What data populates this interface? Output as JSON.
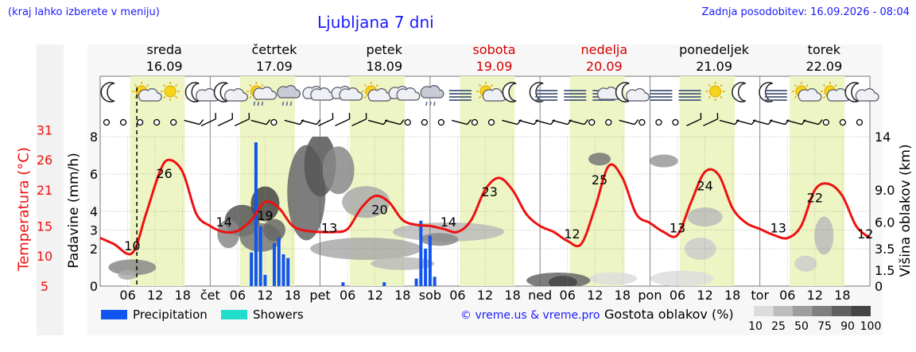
{
  "header": {
    "location_hint": "(kraj lahko izberete v meniju)",
    "title": "Ljubljana 7 dni",
    "updated": "Zadnja posodobitev: 16.09.2026 - 08:04"
  },
  "days": [
    {
      "name": "sreda",
      "date": "16.09",
      "weekend": false
    },
    {
      "name": "četrtek",
      "date": "17.09",
      "weekend": false
    },
    {
      "name": "petek",
      "date": "18.09",
      "weekend": false
    },
    {
      "name": "sobota",
      "date": "19.09",
      "weekend": true
    },
    {
      "name": "nedelja",
      "date": "20.09",
      "weekend": true
    },
    {
      "name": "ponedeljek",
      "date": "21.09",
      "weekend": false
    },
    {
      "name": "torek",
      "date": "22.09",
      "weekend": false
    }
  ],
  "day_abbrev": [
    "čet",
    "pet",
    "sob",
    "ned",
    "pon",
    "tor"
  ],
  "axis_labels": {
    "temp": "Temperatura (°C)",
    "precip": "Padavine (mm/h)",
    "cloud": "Višina oblakov (km)"
  },
  "legend": {
    "precipitation": "Precipitation",
    "showers": "Showers",
    "credit": "© vreme.us & vreme.pro",
    "cloud_density": "Gostota oblakov (%)",
    "density_steps": [
      "10",
      "25",
      "50",
      "75",
      "90",
      "100"
    ]
  },
  "colors": {
    "temperature": "#ee1111",
    "precipitation": "#1155ee",
    "showers": "#22ddcc",
    "daylight": "#eef5c4",
    "link": "#1a1aff",
    "weekend": "#d40000"
  },
  "icons": [
    "moon-icon",
    "sun-cloud-icon",
    "sun-icon",
    "moon-cloud-icon",
    "moon-cloud-icon",
    "sun-rain-icon",
    "cloud-rain-icon",
    "cloud-icon",
    "cloud-icon",
    "sun-cloud-icon",
    "cloud-icon",
    "cloud-rain-icon",
    "fog-icon",
    "sun-cloud-icon",
    "moon-icon",
    "moon-fog-icon",
    "fog-icon",
    "fog-cloud-icon",
    "moon-cloud-icon",
    "fog-icon",
    "fog-icon",
    "sun-icon",
    "moon-icon",
    "moon-fog-icon",
    "sun-cloud-icon",
    "sun-cloud-icon",
    "moon-cloud-icon"
  ],
  "chart_data": {
    "type": "line",
    "x_unit": "hours from 16.09 00:00",
    "x_range": [
      0,
      168
    ],
    "x_ticks": [
      6,
      12,
      18,
      24,
      30,
      36,
      42,
      48,
      54,
      60,
      66,
      72,
      78,
      84,
      90,
      96,
      102,
      108,
      114,
      120,
      126,
      132,
      138,
      144,
      150,
      156,
      162
    ],
    "x_tick_labels": [
      "06",
      "12",
      "18",
      "čet",
      "06",
      "12",
      "18",
      "pet",
      "06",
      "12",
      "18",
      "sob",
      "06",
      "12",
      "18",
      "ned",
      "06",
      "12",
      "18",
      "pon",
      "06",
      "12",
      "18",
      "tor",
      "06",
      "12",
      "18"
    ],
    "current_time_hour": 8,
    "temp_ticks": [
      5,
      10,
      15,
      21,
      26,
      31
    ],
    "precip_ticks": [
      0,
      2,
      3,
      4,
      6,
      8
    ],
    "cloud_height_ticks": [
      "0",
      "1.5",
      "3.5",
      "6.0",
      "9.0",
      "14"
    ],
    "temperature": {
      "name": "Temperatura (°C)",
      "x": [
        0,
        3,
        7,
        10,
        13,
        15,
        18,
        21,
        24,
        27,
        30,
        33,
        36,
        39,
        42,
        45,
        48,
        51,
        54,
        57,
        60,
        63,
        66,
        69,
        72,
        75,
        78,
        81,
        84,
        87,
        90,
        93,
        96,
        99,
        102,
        105,
        108,
        111,
        114,
        117,
        120,
        123,
        126,
        129,
        132,
        135,
        138,
        141,
        144,
        147,
        150,
        153,
        156,
        159,
        162,
        165,
        168
      ],
      "values": [
        13,
        12,
        10.5,
        17,
        24,
        26,
        24,
        17,
        15,
        14,
        14.2,
        16,
        19,
        18,
        15,
        14.2,
        14,
        14,
        14.5,
        18,
        20,
        19,
        16,
        15.2,
        15,
        14.5,
        14,
        16,
        21,
        23,
        21,
        17,
        15,
        14,
        12.5,
        12,
        18,
        25,
        23,
        17,
        15.5,
        14,
        13.5,
        19,
        24,
        23.5,
        18,
        15.5,
        14.5,
        13.5,
        13,
        15,
        21,
        22,
        20,
        15,
        13
      ]
    },
    "extremes": [
      {
        "label": "10",
        "x": 7,
        "y": 10
      },
      {
        "label": "26",
        "x": 14,
        "y": 26
      },
      {
        "label": "14",
        "x": 27,
        "y": 14
      },
      {
        "label": "19",
        "x": 36,
        "y": 19
      },
      {
        "label": "13",
        "x": 50,
        "y": 13
      },
      {
        "label": "20",
        "x": 61,
        "y": 20
      },
      {
        "label": "14",
        "x": 76,
        "y": 14
      },
      {
        "label": "23",
        "x": 85,
        "y": 23
      },
      {
        "label": "12",
        "x": 103,
        "y": 12
      },
      {
        "label": "25",
        "x": 109,
        "y": 25
      },
      {
        "label": "13",
        "x": 126,
        "y": 13
      },
      {
        "label": "24",
        "x": 132,
        "y": 24
      },
      {
        "label": "13",
        "x": 148,
        "y": 13
      },
      {
        "label": "22",
        "x": 156,
        "y": 22
      },
      {
        "label": "12",
        "x": 167,
        "y": 12
      }
    ],
    "precipitation": {
      "name": "Precipitation",
      "bars": [
        {
          "x": 33,
          "mm_h": 1.8
        },
        {
          "x": 34,
          "mm_h": 7.7
        },
        {
          "x": 35,
          "mm_h": 3.2
        },
        {
          "x": 36,
          "mm_h": 0.6
        },
        {
          "x": 38,
          "mm_h": 2.3
        },
        {
          "x": 39,
          "mm_h": 2.6
        },
        {
          "x": 40,
          "mm_h": 1.7
        },
        {
          "x": 41,
          "mm_h": 1.5
        },
        {
          "x": 53,
          "mm_h": 0.2
        },
        {
          "x": 62,
          "mm_h": 0.2
        },
        {
          "x": 69,
          "mm_h": 0.4
        },
        {
          "x": 70,
          "mm_h": 3.5
        },
        {
          "x": 71,
          "mm_h": 2.0
        },
        {
          "x": 72,
          "mm_h": 2.7
        },
        {
          "x": 73,
          "mm_h": 0.5
        }
      ]
    },
    "showers": {
      "name": "Showers",
      "bars": []
    }
  }
}
